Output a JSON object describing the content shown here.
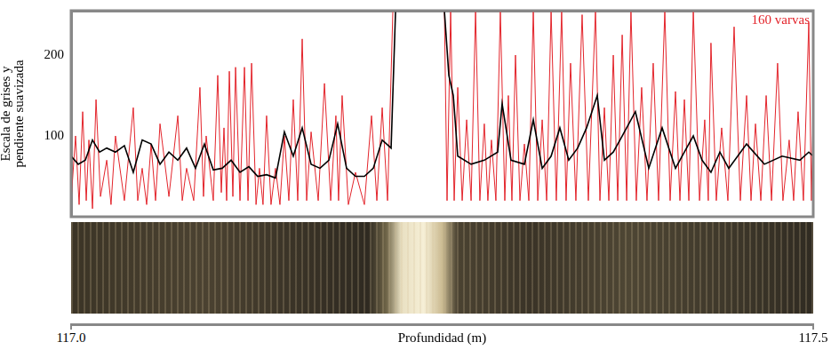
{
  "chart_data": {
    "type": "line",
    "y_label": [
      "Escala de grises y",
      "pendiente suavizada"
    ],
    "x_label": "Profundidad (m)",
    "xlim": [
      117,
      117.5
    ],
    "xticks": [
      {
        "value": 117,
        "label": "117.0"
      },
      {
        "value": 117.5,
        "label": "117.5"
      }
    ],
    "ylim": [
      0,
      255
    ],
    "yticks": [
      100,
      200
    ],
    "grid": false,
    "series": [
      {
        "name": "160 varvas",
        "color": "#e3242b",
        "x": [
          117.0,
          117.003,
          117.0054,
          117.0078,
          117.0102,
          117.012,
          117.0144,
          117.0168,
          117.0198,
          117.024,
          117.0269,
          117.0299,
          117.0359,
          117.0419,
          117.0449,
          117.0479,
          117.0509,
          117.0539,
          117.0569,
          117.0599,
          117.0659,
          117.0719,
          117.0749,
          117.0778,
          117.0826,
          117.0868,
          117.0892,
          117.091,
          117.0958,
          117.0988,
          117.1012,
          117.103,
          117.1048,
          117.1066,
          117.109,
          117.1108,
          117.1138,
          117.1168,
          117.1192,
          117.1216,
          117.1246,
          117.1269,
          117.1293,
          117.1317,
          117.1347,
          117.1377,
          117.1407,
          117.1437,
          117.1467,
          117.1497,
          117.1527,
          117.1557,
          117.1587,
          117.1617,
          117.1665,
          117.1707,
          117.1749,
          117.1784,
          117.1802,
          117.1826,
          117.1868,
          117.1916,
          117.1976,
          117.2024,
          117.206,
          117.2096,
          117.2132,
          117.2168,
          117.2204,
          117.2515,
          117.2533,
          117.2557,
          117.2581,
          117.2605,
          117.2635,
          117.2665,
          117.2695,
          117.2725,
          117.2754,
          117.2784,
          117.2808,
          117.2832,
          117.2862,
          117.2892,
          117.2922,
          117.2946,
          117.297,
          117.2994,
          117.3024,
          117.3054,
          117.3084,
          117.3114,
          117.3144,
          117.3174,
          117.3204,
          117.3234,
          117.3269,
          117.3305,
          117.3335,
          117.3365,
          117.3401,
          117.3443,
          117.3485,
          117.3533,
          117.3563,
          117.3593,
          117.3623,
          117.3653,
          117.3683,
          117.3713,
          117.3743,
          117.3772,
          117.3808,
          117.3844,
          117.388,
          117.3922,
          117.3958,
          117.4,
          117.4036,
          117.4072,
          117.4102,
          117.4132,
          117.4162,
          117.4192,
          117.4234,
          117.4269,
          117.4293,
          117.4311,
          117.4347,
          117.4383,
          117.4425,
          117.4467,
          117.4509,
          117.4551,
          117.4581,
          117.4611,
          117.4647,
          117.4683,
          117.4719,
          117.476,
          117.4796,
          117.4838,
          117.4868,
          117.4898,
          117.4934,
          117.497,
          117.4988,
          117.5
        ],
        "values": [
          20,
          100,
          15,
          130,
          20,
          95,
          10,
          145,
          25,
          70,
          15,
          100,
          20,
          135,
          20,
          60,
          15,
          90,
          20,
          115,
          25,
          125,
          20,
          60,
          20,
          160,
          25,
          100,
          20,
          175,
          30,
          110,
          20,
          180,
          25,
          185,
          20,
          185,
          20,
          190,
          15,
          60,
          15,
          125,
          15,
          60,
          15,
          100,
          20,
          145,
          20,
          220,
          20,
          105,
          20,
          165,
          20,
          125,
          20,
          150,
          15,
          55,
          15,
          125,
          20,
          135,
          20,
          255,
          255,
          255,
          20,
          255,
          20,
          160,
          20,
          120,
          20,
          255,
          20,
          115,
          20,
          95,
          20,
          255,
          20,
          150,
          20,
          200,
          20,
          90,
          20,
          255,
          20,
          120,
          20,
          255,
          20,
          255,
          20,
          190,
          20,
          250,
          20,
          255,
          20,
          135,
          20,
          200,
          20,
          225,
          20,
          255,
          20,
          160,
          20,
          190,
          20,
          255,
          20,
          155,
          20,
          145,
          20,
          255,
          20,
          120,
          20,
          215,
          20,
          110,
          20,
          235,
          20,
          150,
          20,
          115,
          20,
          150,
          20,
          190,
          20,
          95,
          20,
          130,
          20,
          240,
          20,
          130
        ]
      },
      {
        "color": "#000000",
        "x": [
          117.0,
          117.0048,
          117.0096,
          117.0144,
          117.0192,
          117.024,
          117.0299,
          117.0359,
          117.0419,
          117.0479,
          117.0539,
          117.0599,
          117.0659,
          117.0719,
          117.0778,
          117.0838,
          117.0898,
          117.0958,
          117.1018,
          117.1078,
          117.1138,
          117.1198,
          117.1257,
          117.1317,
          117.1377,
          117.1437,
          117.1497,
          117.1557,
          117.1617,
          117.1677,
          117.1737,
          117.1796,
          117.1856,
          117.1916,
          117.1976,
          117.2036,
          117.2096,
          117.2156,
          117.2186,
          117.2515,
          117.2545,
          117.2575,
          117.2605,
          117.2695,
          117.2784,
          117.2874,
          117.2904,
          117.2964,
          117.3054,
          117.3114,
          117.3174,
          117.3234,
          117.3293,
          117.3353,
          117.3413,
          117.3473,
          117.3545,
          117.3593,
          117.3653,
          117.3713,
          117.3802,
          117.3892,
          117.3982,
          117.4072,
          117.4132,
          117.4192,
          117.4251,
          117.4311,
          117.4371,
          117.4431,
          117.4551,
          117.4671,
          117.479,
          117.491,
          117.497,
          117.5
        ],
        "values": [
          75,
          65,
          70,
          95,
          80,
          85,
          80,
          88,
          55,
          95,
          90,
          65,
          80,
          70,
          85,
          60,
          90,
          58,
          60,
          70,
          55,
          62,
          50,
          52,
          48,
          105,
          75,
          110,
          65,
          60,
          70,
          115,
          60,
          50,
          50,
          60,
          95,
          85,
          255,
          255,
          175,
          150,
          75,
          65,
          70,
          80,
          140,
          70,
          65,
          120,
          60,
          75,
          110,
          70,
          85,
          110,
          150,
          70,
          80,
          100,
          130,
          60,
          110,
          60,
          80,
          100,
          70,
          55,
          80,
          60,
          90,
          65,
          75,
          70,
          80,
          75
        ]
      }
    ]
  }
}
